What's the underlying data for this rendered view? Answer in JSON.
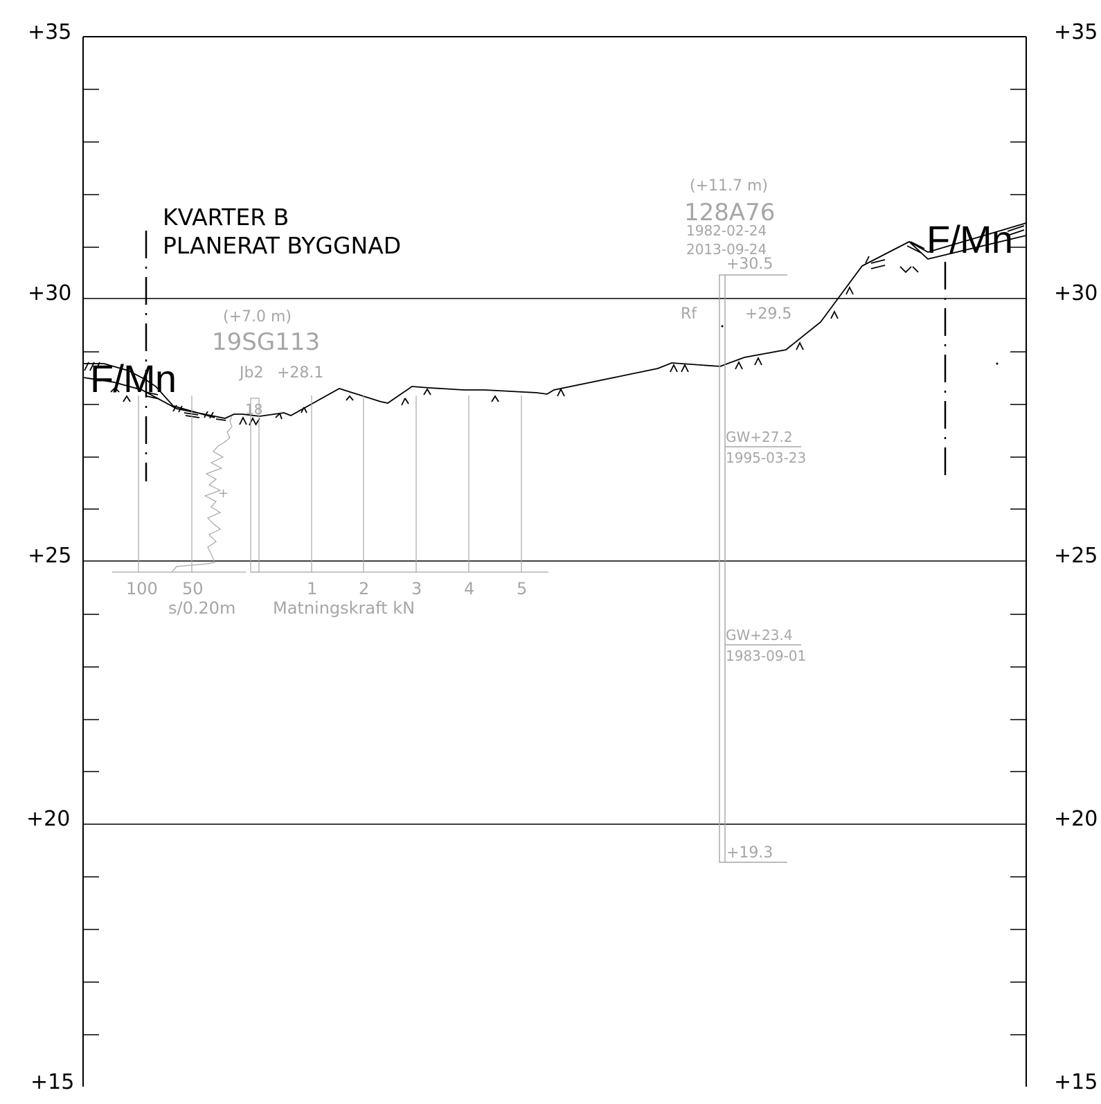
{
  "section": {
    "title_line1": "KVARTER B",
    "title_line2": "PLANERAT BYGGNAD",
    "elevation_labels": [
      "+35",
      "+30",
      "+25",
      "+20",
      "+15"
    ],
    "soil_label_left": "F/Mn",
    "soil_label_right": "F/Mn"
  },
  "borehole_19SG113": {
    "offset": "(+7.0 m)",
    "id": "19SG113",
    "method": "Jb2",
    "ground_level": "+28.1",
    "marker": "18",
    "blow_axis_ticks": [
      "100",
      "50"
    ],
    "blow_axis_label": "s/0.20m",
    "force_axis_ticks": [
      "1",
      "2",
      "3",
      "4",
      "5"
    ],
    "force_axis_label": "Matningskraft kN"
  },
  "borehole_128A76": {
    "offset": "(+11.7 m)",
    "id": "128A76",
    "date1": "1982-02-24",
    "date2": "2013-09-24",
    "top_level": "+30.5",
    "method": "Rf",
    "ground_level": "+29.5",
    "gw1_level": "GW+27.2",
    "gw1_date": "1995-03-23",
    "gw2_level": "GW+23.4",
    "gw2_date": "1983-09-01",
    "bottom_level": "+19.3"
  },
  "colors": {
    "ink": "#000000",
    "borehole_grey": "#a6a6a6"
  }
}
